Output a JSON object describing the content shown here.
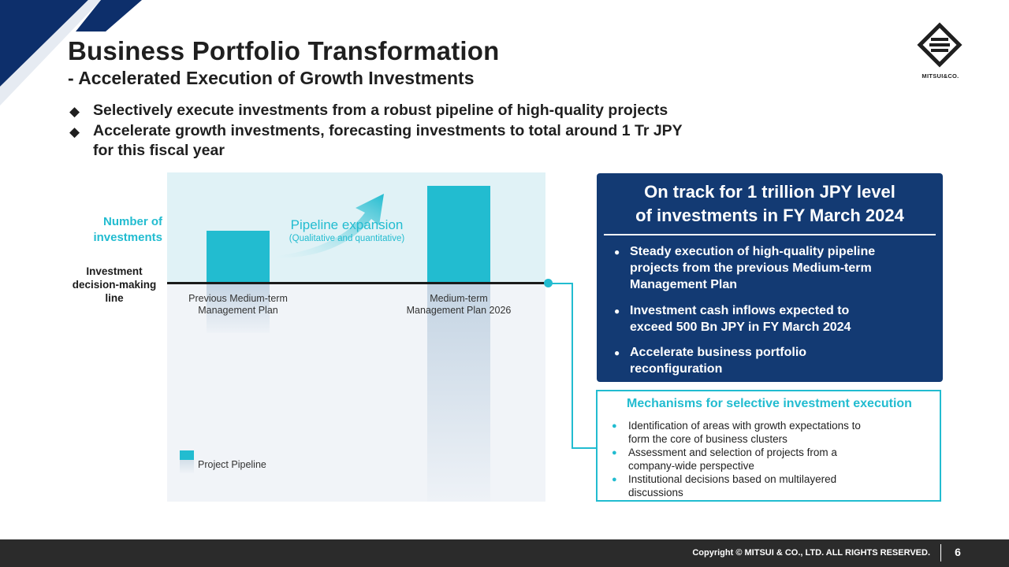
{
  "title": "Business Portfolio Transformation",
  "subtitle": "- Accelerated Execution of Growth Investments",
  "bullets": [
    {
      "line1": "Selectively execute investments from a robust pipeline of high-quality projects",
      "line2": ""
    },
    {
      "line1": "Accelerate growth investments, forecasting investments to total around 1 Tr JPY",
      "line2": "for this fiscal year"
    }
  ],
  "bullet_symbol": "◆",
  "logo": {
    "text": "MITSUI&CO."
  },
  "diagram": {
    "y_label_line1": "Number of",
    "y_label_line2": "investments",
    "line_label_1": "Investment",
    "line_label_2": "decision-making",
    "line_label_3": "line",
    "pipeline_title": "Pipeline expansion",
    "pipeline_sub": "(Qualitative and quantitative)",
    "categories": [
      {
        "line1": "Previous Medium-term",
        "line2": "Management Plan"
      },
      {
        "line1": "Medium-term",
        "line2": "Management Plan 2026"
      }
    ],
    "legend": "Project Pipeline"
  },
  "navy_box": {
    "heading_line1": "On track for 1 trillion JPY level",
    "heading_line2": "of investments in FY March 2024",
    "bullet_symbol": "●",
    "items": [
      {
        "line1": "Steady execution of high-quality pipeline",
        "line2": "projects from the previous Medium-term",
        "line3": "Management Plan"
      },
      {
        "line1": "Investment cash inflows expected to",
        "line2": "exceed 500 Bn JPY in FY March 2024",
        "line3": ""
      },
      {
        "line1": "Accelerate business portfolio",
        "line2": "reconfiguration",
        "line3": ""
      }
    ]
  },
  "mechanisms_box": {
    "heading": "Mechanisms for selective investment execution",
    "bullet_symbol": "●",
    "items": [
      {
        "line1": "Identification of areas with growth expectations to",
        "line2": "form the core of business clusters"
      },
      {
        "line1": "Assessment and selection of projects from a",
        "line2": "company-wide perspective"
      },
      {
        "line1": "Institutional decisions based on multilayered",
        "line2": "discussions"
      }
    ]
  },
  "footer": {
    "copyright": "Copyright © MITSUI & CO., LTD. ALL RIGHTS RESERVED.",
    "page_number": "6"
  },
  "colors": {
    "accent": "#22bcd0",
    "navy": "#133a73",
    "corner": "#0d2f6b",
    "footer": "#2b2b2b"
  }
}
